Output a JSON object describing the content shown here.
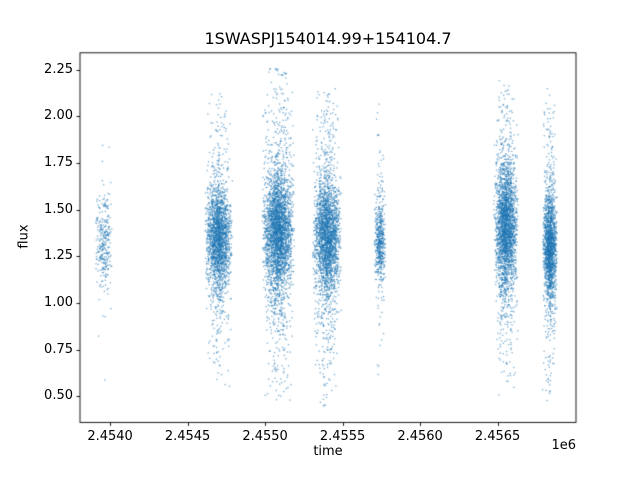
{
  "figure": {
    "title": "1SWASPJ154014.99+154104.7"
  },
  "chart_data": {
    "type": "scatter",
    "title": "1SWASPJ154014.99+154104.7",
    "xlabel": "time",
    "ylabel": "flux",
    "x_offset_text": "1e6",
    "xlim": [
      2453806,
      2457006
    ],
    "ylim": [
      0.36,
      2.34
    ],
    "grid": false,
    "legend": null,
    "marker_color": "#1f77b4",
    "marker_alpha": 0.6,
    "marker_size_px": 1.3,
    "xticks": {
      "values": [
        2454000,
        2454500,
        2455000,
        2455500,
        2456000,
        2456500
      ],
      "labels": [
        "2.4540",
        "2.4545",
        "2.4550",
        "2.4555",
        "2.4560",
        "2.4565"
      ]
    },
    "yticks": {
      "values": [
        0.5,
        0.75,
        1.0,
        1.25,
        1.5,
        1.75,
        2.0,
        2.25
      ],
      "labels": [
        "0.50",
        "0.75",
        "1.00",
        "1.25",
        "1.50",
        "1.75",
        "2.00",
        "2.25"
      ]
    },
    "clusters": [
      {
        "x_center": 2453958,
        "x_halfwidth": 55,
        "n": 300,
        "y_mean": 1.32,
        "y_core_sigma": 0.12,
        "y_tail_sigma": 0.34,
        "tail_frac": 0.15,
        "y_min": 0.44,
        "y_max": 1.88
      },
      {
        "x_center": 2454700,
        "x_halfwidth": 90,
        "n": 2200,
        "y_mean": 1.35,
        "y_core_sigma": 0.13,
        "y_tail_sigma": 0.38,
        "tail_frac": 0.22,
        "y_min": 0.55,
        "y_max": 2.12
      },
      {
        "x_center": 2455085,
        "x_halfwidth": 105,
        "n": 3200,
        "y_mean": 1.38,
        "y_core_sigma": 0.15,
        "y_tail_sigma": 0.45,
        "tail_frac": 0.27,
        "y_min": 0.42,
        "y_max": 2.26
      },
      {
        "x_center": 2455400,
        "x_halfwidth": 95,
        "n": 2600,
        "y_mean": 1.35,
        "y_core_sigma": 0.14,
        "y_tail_sigma": 0.44,
        "tail_frac": 0.27,
        "y_min": 0.44,
        "y_max": 2.16
      },
      {
        "x_center": 2455742,
        "x_halfwidth": 38,
        "n": 550,
        "y_mean": 1.33,
        "y_core_sigma": 0.1,
        "y_tail_sigma": 0.4,
        "tail_frac": 0.2,
        "y_min": 0.55,
        "y_max": 2.08
      },
      {
        "x_center": 2456554,
        "x_halfwidth": 80,
        "n": 2600,
        "y_mean": 1.4,
        "y_core_sigma": 0.16,
        "y_tail_sigma": 0.42,
        "tail_frac": 0.25,
        "y_min": 0.5,
        "y_max": 2.2
      },
      {
        "x_center": 2456838,
        "x_halfwidth": 48,
        "n": 1800,
        "y_mean": 1.3,
        "y_core_sigma": 0.13,
        "y_tail_sigma": 0.42,
        "tail_frac": 0.22,
        "y_min": 0.44,
        "y_max": 2.16
      }
    ]
  }
}
